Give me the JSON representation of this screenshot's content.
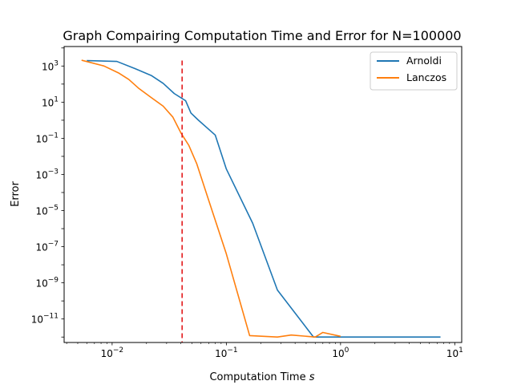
{
  "chart_data": {
    "type": "line",
    "title": "Graph Compairing Computation Time and Error for N=100000",
    "xlabel": "Computation Time",
    "xlabel_unit": "s",
    "ylabel": "Error",
    "xscale": "log",
    "yscale": "log",
    "xlim": [
      0.0038,
      11.5
    ],
    "ylim": [
      5e-13,
      12000
    ],
    "x_ticks": [
      {
        "value": 0.01,
        "base": "10",
        "exp": "−2"
      },
      {
        "value": 0.1,
        "base": "10",
        "exp": "−1"
      },
      {
        "value": 1,
        "base": "10",
        "exp": "0"
      },
      {
        "value": 10,
        "base": "10",
        "exp": "1"
      }
    ],
    "y_ticks": [
      {
        "value": 1e-11,
        "base": "10",
        "exp": "−11"
      },
      {
        "value": 1e-09,
        "base": "10",
        "exp": "−9"
      },
      {
        "value": 1e-07,
        "base": "10",
        "exp": "−7"
      },
      {
        "value": 1e-05,
        "base": "10",
        "exp": "−5"
      },
      {
        "value": 0.001,
        "base": "10",
        "exp": "−3"
      },
      {
        "value": 0.1,
        "base": "10",
        "exp": "−1"
      },
      {
        "value": 10,
        "base": "10",
        "exp": "1"
      },
      {
        "value": 1000,
        "base": "10",
        "exp": "3"
      }
    ],
    "grid": false,
    "legend_position": "top-right",
    "series": [
      {
        "name": "Arnoldi",
        "color": "#1f77b4",
        "points": [
          [
            0.006,
            2000
          ],
          [
            0.011,
            1800
          ],
          [
            0.016,
            700
          ],
          [
            0.022,
            300
          ],
          [
            0.028,
            110
          ],
          [
            0.035,
            30
          ],
          [
            0.044,
            12
          ],
          [
            0.049,
            2.5
          ],
          [
            0.057,
            1.0
          ],
          [
            0.08,
            0.15
          ],
          [
            0.1,
            0.002
          ],
          [
            0.17,
            2e-06
          ],
          [
            0.28,
            4e-10
          ],
          [
            0.58,
            1e-12
          ],
          [
            7.5,
            1e-12
          ]
        ]
      },
      {
        "name": "Lanczos",
        "color": "#ff7f0e",
        "points": [
          [
            0.0054,
            2100
          ],
          [
            0.0085,
            1000
          ],
          [
            0.0115,
            400
          ],
          [
            0.014,
            180
          ],
          [
            0.017,
            60
          ],
          [
            0.022,
            18
          ],
          [
            0.028,
            6
          ],
          [
            0.034,
            1.5
          ],
          [
            0.04,
            0.2
          ],
          [
            0.047,
            0.04
          ],
          [
            0.055,
            0.004
          ],
          [
            0.075,
            1e-05
          ],
          [
            0.1,
            4e-08
          ],
          [
            0.16,
            1.2e-12
          ],
          [
            0.28,
            1e-12
          ],
          [
            0.37,
            1.3e-12
          ],
          [
            0.6,
            1e-12
          ],
          [
            0.7,
            1.8e-12
          ],
          [
            1.0,
            1.1e-12
          ]
        ]
      }
    ],
    "vline": {
      "x": 0.041,
      "color": "#e31a1c",
      "style": "dashed"
    }
  }
}
